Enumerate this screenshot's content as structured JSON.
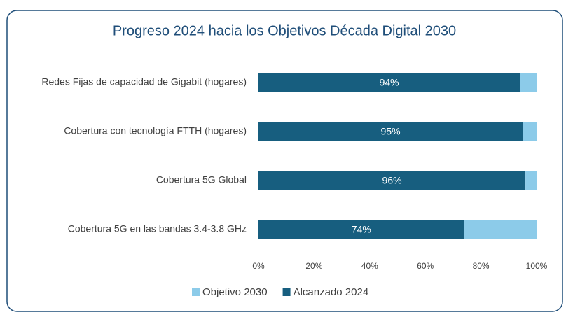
{
  "chart_data": {
    "type": "stacked-barh",
    "title": "Progreso 2024 hacia los Objetivos Década Digital 2030",
    "categories": [
      "Redes Fijas de capacidad de Gigabit (hogares)",
      "Cobertura con tecnología FTTH (hogares)",
      "Cobertura 5G Global",
      "Cobertura 5G en las bandas 3.4-3.8 GHz"
    ],
    "series": [
      {
        "name": "Objetivo 2030",
        "color": "#8ccbe9",
        "values": [
          6,
          5,
          4,
          26
        ]
      },
      {
        "name": "Alcanzado 2024",
        "color": "#175e7f",
        "values": [
          94,
          95,
          96,
          74
        ],
        "value_labels": [
          "94%",
          "95%",
          "96%",
          "74%"
        ]
      }
    ],
    "xlim": [
      0,
      100
    ],
    "xticks": [
      {
        "value": 0,
        "label": "0%"
      },
      {
        "value": 20,
        "label": "20%"
      },
      {
        "value": 40,
        "label": "40%"
      },
      {
        "value": 60,
        "label": "60%"
      },
      {
        "value": 80,
        "label": "80%"
      },
      {
        "value": 100,
        "label": "100%"
      }
    ],
    "grid": false,
    "legend": "bottom"
  }
}
